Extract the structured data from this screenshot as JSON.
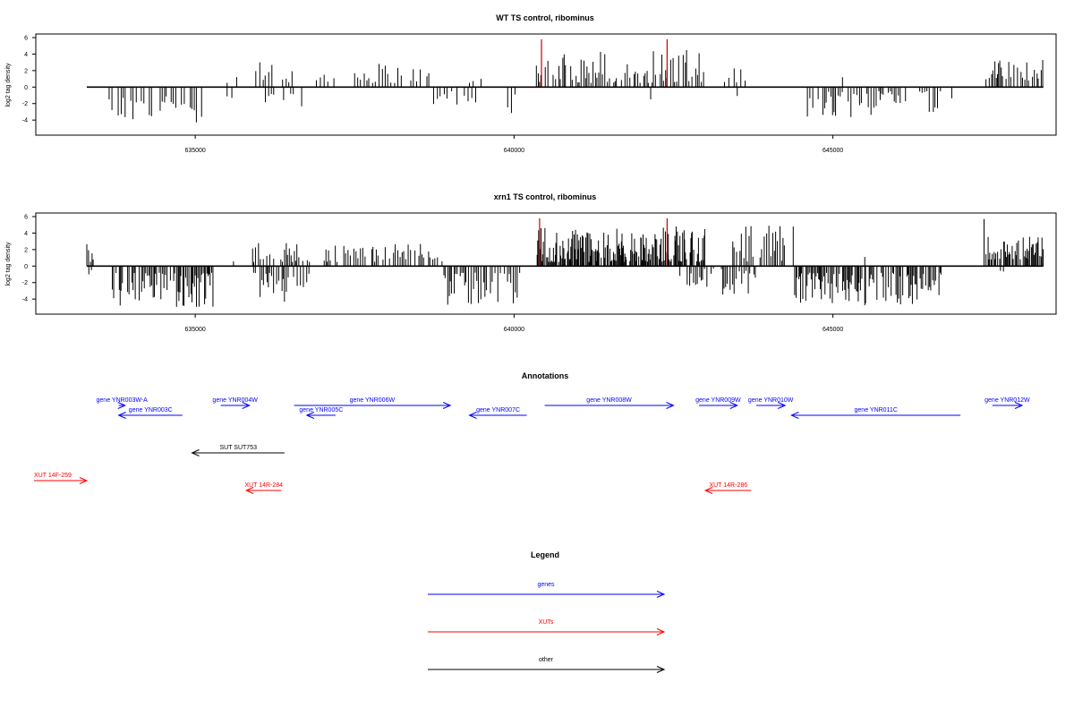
{
  "chart_data": [
    {
      "type": "bar",
      "title": "WT TS control, ribominus",
      "ylabel": "log2 tag density",
      "xlim": [
        632500,
        648500
      ],
      "ylim": [
        -5.5,
        6
      ],
      "yticks": [
        -4,
        -2,
        0,
        2,
        4,
        6
      ],
      "xticks": [
        635000,
        640000,
        645000
      ],
      "baseline": [
        633300,
        648300
      ],
      "highlight_bars": [
        {
          "x": 640430,
          "y": 5.8,
          "color": "#cc0000"
        },
        {
          "x": 642400,
          "y": 5.8,
          "color": "#cc0000"
        }
      ],
      "segments": [
        {
          "from": 633650,
          "to": 635100,
          "sign": -1,
          "low": 1.0,
          "high": 4.3,
          "step": 40
        },
        {
          "from": 635500,
          "to": 635650,
          "sign": 1,
          "low": 0.5,
          "high": 1.5,
          "step": 70
        },
        {
          "from": 635500,
          "to": 635600,
          "sign": -1,
          "low": 1.0,
          "high": 2.2,
          "step": 60
        },
        {
          "from": 635950,
          "to": 636550,
          "sign": 1,
          "low": 0.5,
          "high": 3.0,
          "step": 50
        },
        {
          "from": 636100,
          "to": 636700,
          "sign": -1,
          "low": 0.5,
          "high": 2.4,
          "step": 60
        },
        {
          "from": 636900,
          "to": 637200,
          "sign": 1,
          "low": 0.6,
          "high": 2.2,
          "step": 50
        },
        {
          "from": 637500,
          "to": 638700,
          "sign": 1,
          "low": 0.5,
          "high": 3.0,
          "step": 45
        },
        {
          "from": 638700,
          "to": 639400,
          "sign": -1,
          "low": 0.5,
          "high": 2.8,
          "step": 60
        },
        {
          "from": 639300,
          "to": 639500,
          "sign": 1,
          "low": 0.5,
          "high": 1.2,
          "step": 80
        },
        {
          "from": 639900,
          "to": 640050,
          "sign": -1,
          "low": 0.8,
          "high": 3.2,
          "step": 50
        },
        {
          "from": 640350,
          "to": 643000,
          "sign": 1,
          "low": 0.5,
          "high": 4.5,
          "step": 30
        },
        {
          "from": 642100,
          "to": 642200,
          "sign": -1,
          "low": 0.6,
          "high": 1.5,
          "step": 50
        },
        {
          "from": 643300,
          "to": 643700,
          "sign": 1,
          "low": 0.5,
          "high": 2.5,
          "step": 60
        },
        {
          "from": 643500,
          "to": 643600,
          "sign": -1,
          "low": 0.5,
          "high": 1.5,
          "step": 50
        },
        {
          "from": 644600,
          "to": 646900,
          "sign": -1,
          "low": 0.5,
          "high": 3.8,
          "step": 35
        },
        {
          "from": 645150,
          "to": 645200,
          "sign": 1,
          "low": 1.0,
          "high": 1.6,
          "step": 40
        },
        {
          "from": 647400,
          "to": 648300,
          "sign": 1,
          "low": 0.8,
          "high": 3.3,
          "step": 25
        }
      ]
    },
    {
      "type": "bar",
      "title": "xrn1 TS control, ribominus",
      "ylabel": "log2 tag density",
      "xlim": [
        632500,
        648500
      ],
      "ylim": [
        -5.5,
        6
      ],
      "yticks": [
        -4,
        -2,
        0,
        2,
        4,
        6
      ],
      "xticks": [
        635000,
        640000,
        645000
      ],
      "baseline": [
        633300,
        648300
      ],
      "highlight_bars": [
        {
          "x": 640400,
          "y": 5.8,
          "color": "#cc0000"
        },
        {
          "x": 642400,
          "y": 5.8,
          "color": "#cc0000"
        }
      ],
      "segments": [
        {
          "from": 633300,
          "to": 633400,
          "sign": 1,
          "low": 0.5,
          "high": 2.8,
          "step": 25
        },
        {
          "from": 633300,
          "to": 633400,
          "sign": -1,
          "low": 0.3,
          "high": 1.5,
          "step": 30
        },
        {
          "from": 633700,
          "to": 635300,
          "sign": -1,
          "low": 0.8,
          "high": 5.2,
          "step": 20
        },
        {
          "from": 635600,
          "to": 635700,
          "sign": 1,
          "low": 0.3,
          "high": 1.0,
          "step": 50
        },
        {
          "from": 635900,
          "to": 636800,
          "sign": 1,
          "low": 0.5,
          "high": 3.0,
          "step": 25
        },
        {
          "from": 635900,
          "to": 636800,
          "sign": -1,
          "low": 0.8,
          "high": 4.5,
          "step": 25
        },
        {
          "from": 637000,
          "to": 638900,
          "sign": 1,
          "low": 0.5,
          "high": 3.0,
          "step": 30
        },
        {
          "from": 638900,
          "to": 640100,
          "sign": -1,
          "low": 0.8,
          "high": 4.8,
          "step": 20
        },
        {
          "from": 640350,
          "to": 643000,
          "sign": 1,
          "low": 0.5,
          "high": 4.8,
          "step": 12
        },
        {
          "from": 642600,
          "to": 643800,
          "sign": -1,
          "low": 0.3,
          "high": 3.5,
          "step": 30
        },
        {
          "from": 643400,
          "to": 644400,
          "sign": 1,
          "low": 0.5,
          "high": 5.0,
          "step": 30
        },
        {
          "from": 644400,
          "to": 646700,
          "sign": -1,
          "low": 0.8,
          "high": 4.8,
          "step": 18
        },
        {
          "from": 645500,
          "to": 645550,
          "sign": 1,
          "low": 1.0,
          "high": 1.8,
          "step": 40
        },
        {
          "from": 647400,
          "to": 648300,
          "sign": 1,
          "low": 0.8,
          "high": 3.8,
          "step": 14
        },
        {
          "from": 647600,
          "to": 647700,
          "sign": -1,
          "low": 0.3,
          "high": 1.0,
          "step": 40
        }
      ],
      "extra_bars": [
        {
          "x": 647370,
          "y": 5.7
        }
      ]
    }
  ],
  "annotations": {
    "title": "Annotations",
    "features": [
      {
        "label": "gene YNR003W-A",
        "color": "#0000ff",
        "row": 1,
        "from": 633800,
        "to": 633900,
        "dir": "+"
      },
      {
        "label": "gene YNR003C",
        "color": "#0000ff",
        "row": 2,
        "from": 633800,
        "to": 634800,
        "dir": "-"
      },
      {
        "label": "gene YNR004W",
        "color": "#0000ff",
        "row": 1,
        "from": 635400,
        "to": 635850,
        "dir": "+"
      },
      {
        "label": "gene YNR005C",
        "color": "#0000ff",
        "row": 2,
        "from": 636750,
        "to": 637200,
        "dir": "-"
      },
      {
        "label": "gene YNR006W",
        "color": "#0000ff",
        "row": 1,
        "from": 636550,
        "to": 639000,
        "dir": "+"
      },
      {
        "label": "gene YNR007C",
        "color": "#0000ff",
        "row": 2,
        "from": 639300,
        "to": 640200,
        "dir": "-"
      },
      {
        "label": "gene YNR008W",
        "color": "#0000ff",
        "row": 1,
        "from": 640480,
        "to": 642500,
        "dir": "+"
      },
      {
        "label": "gene YNR009W",
        "color": "#0000ff",
        "row": 1,
        "from": 642900,
        "to": 643500,
        "dir": "+"
      },
      {
        "label": "gene YNR010W",
        "color": "#0000ff",
        "row": 1,
        "from": 643800,
        "to": 644250,
        "dir": "+"
      },
      {
        "label": "gene YNR011C",
        "color": "#0000ff",
        "row": 2,
        "from": 644350,
        "to": 647000,
        "dir": "-"
      },
      {
        "label": "gene YNR012W",
        "color": "#0000ff",
        "row": 1,
        "from": 647500,
        "to": 649000,
        "dir": "+"
      },
      {
        "label": "SUT SUT753",
        "color": "#000000",
        "row": 3,
        "from": 634950,
        "to": 636400,
        "dir": "-"
      },
      {
        "label": "XUT 14F-259",
        "color": "#ff0000",
        "row": 4,
        "from": 632000,
        "to": 633300,
        "dir": "+"
      },
      {
        "label": "XUT 14R-284",
        "color": "#ff0000",
        "row": 5,
        "from": 635800,
        "to": 636350,
        "dir": "-"
      },
      {
        "label": "XUT 14R-286",
        "color": "#ff0000",
        "row": 5,
        "from": 643000,
        "to": 643720,
        "dir": "-"
      }
    ]
  },
  "legend": {
    "title": "Legend",
    "items": [
      {
        "label": "genes",
        "color": "#0000ff"
      },
      {
        "label": "XUTs",
        "color": "#ff0000"
      },
      {
        "label": "other",
        "color": "#000000"
      }
    ]
  }
}
